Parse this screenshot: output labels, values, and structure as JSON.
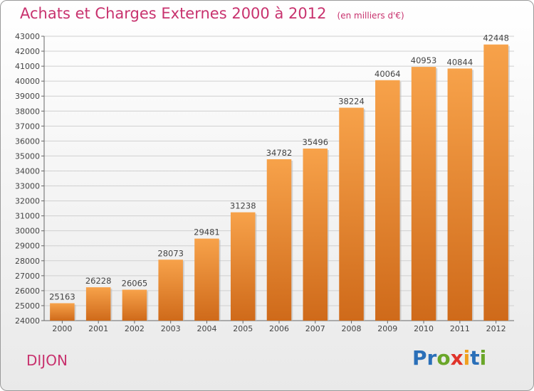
{
  "header": {
    "title": "Achats et Charges Externes 2000 à 2012",
    "subtitle": "(en milliers d'€)"
  },
  "footer": {
    "city": "DIJON",
    "logo_text": "Proxiti"
  },
  "colors": {
    "bar_top": "#f7a24a",
    "bar_bottom": "#cf6a1a",
    "title": "#c8326e",
    "logo_letters": [
      "#2a6fb8",
      "#2a6fb8",
      "#6aa629",
      "#e0332a",
      "#f0a020",
      "#2a6fb8",
      "#6aa629"
    ]
  },
  "chart_data": {
    "type": "bar",
    "title": "Achats et Charges Externes 2000 à 2012",
    "categories": [
      "2000",
      "2001",
      "2002",
      "2003",
      "2004",
      "2005",
      "2006",
      "2007",
      "2008",
      "2009",
      "2010",
      "2011",
      "2012"
    ],
    "values": [
      25163,
      26228,
      26065,
      28073,
      29481,
      31238,
      34782,
      35496,
      38224,
      40064,
      40953,
      40844,
      42448
    ],
    "ylim": [
      24000,
      43000
    ],
    "yticks": [
      24000,
      25000,
      26000,
      27000,
      28000,
      29000,
      30000,
      31000,
      32000,
      33000,
      34000,
      35000,
      36000,
      37000,
      38000,
      39000,
      40000,
      41000,
      42000,
      43000
    ],
    "grid": true,
    "legend": "none"
  }
}
